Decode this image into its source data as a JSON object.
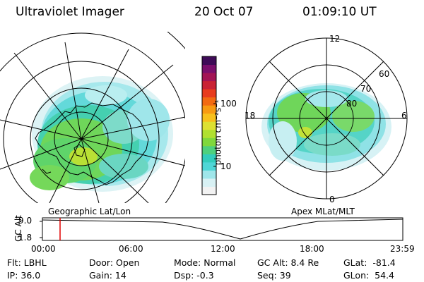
{
  "header": {
    "instrument": "Ultraviolet Imager",
    "date": "20 Oct 07",
    "time": "01:09:10 UT"
  },
  "left_map": {
    "caption": "Geographic Lat/Lon"
  },
  "right_map": {
    "caption": "Apex MLat/MLT",
    "mlt_labels": [
      "12",
      "18",
      "6",
      "0"
    ],
    "lat_labels": [
      "60",
      "70",
      "80"
    ]
  },
  "colorbar": {
    "unit_label": "photon cm⁻²s⁻¹",
    "ticks": [
      "100",
      "10"
    ],
    "colors": [
      "#f2f2f2",
      "#d8f1f4",
      "#9fe6ea",
      "#4fd6d6",
      "#33ccbb",
      "#4ed07d",
      "#7fd83c",
      "#b0e030",
      "#dde132",
      "#f7c01c",
      "#f79a12",
      "#f26a12",
      "#e83c1e",
      "#c92234",
      "#a31455",
      "#7a0f6c",
      "#3e0b57"
    ]
  },
  "timeline": {
    "axis_label": "GC Alt",
    "y_ticks": [
      "9.0",
      "1.8"
    ],
    "x_ticks": [
      "00:00",
      "06:00",
      "12:00",
      "18:00",
      "23:59"
    ],
    "current_time_marker": "01:09"
  },
  "info": {
    "flt": "Flt: LBHL",
    "ip": "IP: 36.0",
    "door": "Door: Open",
    "gain": "Gain: 14",
    "mode": "Mode: Normal",
    "dsp": "Dsp:    -0.3",
    "gc_alt": "GC Alt: 8.4 Re",
    "seq": "Seq: 39",
    "glat": "GLat:  -81.4",
    "glon": "GLon:  54.4"
  }
}
